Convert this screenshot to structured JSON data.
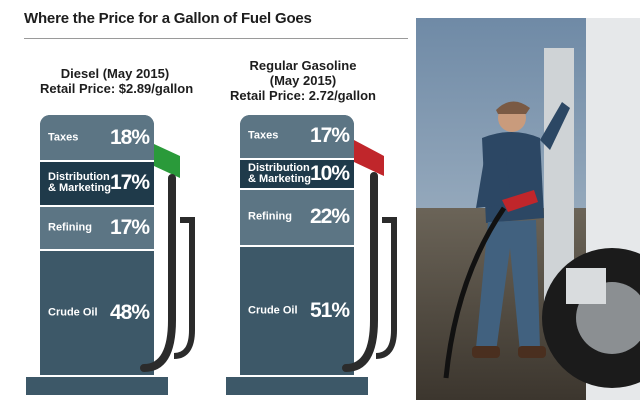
{
  "title": "Where the Price for a Gallon of Fuel Goes",
  "pumps": [
    {
      "heading": [
        "Diesel (May 2015)",
        "Retail Price: $2.89/gallon"
      ],
      "nozzle_color": "#2a9a3a",
      "segments": [
        {
          "label": "Taxes",
          "value": "18%",
          "percent": 18,
          "color": "#5c7584"
        },
        {
          "label": "Distribution\n& Marketing",
          "value": "17%",
          "percent": 17,
          "color": "#1f3a4a"
        },
        {
          "label": "Refining",
          "value": "17%",
          "percent": 17,
          "color": "#5c7584"
        },
        {
          "label": "Crude Oil",
          "value": "48%",
          "percent": 48,
          "color": "#3d5868"
        }
      ]
    },
    {
      "heading": [
        "Regular Gasoline",
        "(May 2015)",
        "Retail Price: 2.72/gallon"
      ],
      "nozzle_color": "#c0262b",
      "segments": [
        {
          "label": "Taxes",
          "value": "17%",
          "percent": 17,
          "color": "#5c7584"
        },
        {
          "label": "Distribution\n& Marketing",
          "value": "10%",
          "percent": 10,
          "color": "#1f3a4a"
        },
        {
          "label": "Refining",
          "value": "22%",
          "percent": 22,
          "color": "#5c7584"
        },
        {
          "label": "Crude Oil",
          "value": "51%",
          "percent": 51,
          "color": "#3d5868"
        }
      ]
    }
  ],
  "chart_data": [
    {
      "type": "bar",
      "title": "Diesel (May 2015)",
      "subtitle": "Retail Price: $2.89/gallon",
      "categories": [
        "Taxes",
        "Distribution & Marketing",
        "Refining",
        "Crude Oil"
      ],
      "values": [
        18,
        17,
        17,
        48
      ]
    },
    {
      "type": "bar",
      "title": "Regular Gasoline (May 2015)",
      "subtitle": "Retail Price: 2.72/gallon",
      "categories": [
        "Taxes",
        "Distribution & Marketing",
        "Refining",
        "Crude Oil"
      ],
      "values": [
        17,
        10,
        22,
        51
      ]
    }
  ],
  "photo_icon": "trucker-fueling-photo"
}
